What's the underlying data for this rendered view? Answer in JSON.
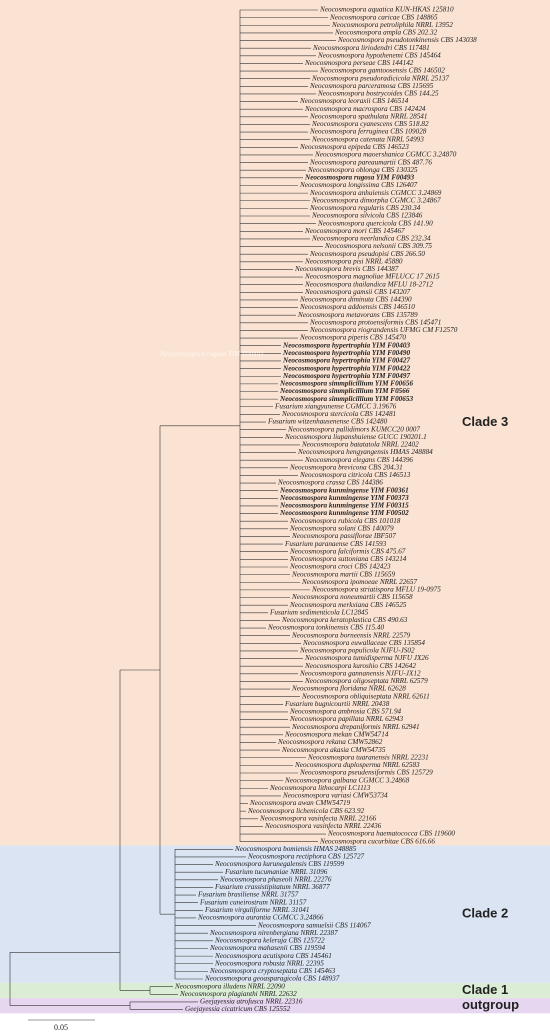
{
  "watermark": "Neocosmospora rugosa YIM F00493",
  "scale_bar": "0.05",
  "clades": [
    {
      "label": "Clade 3",
      "color": "#fbe3d3",
      "taxa": [
        {
          "name": "Neocosmospora aquatica KUN-HKAS 125810"
        },
        {
          "name": "Neocosmospora caricae CBS 148865"
        },
        {
          "name": "Neocosmospora petroliphila NRRL 13952"
        },
        {
          "name": "Neocosmospora ampla CBS 202.32"
        },
        {
          "name": "Neocosmospora pseudotonkinensis CBS 143038"
        },
        {
          "name": "Neocosmospora liriodendri CBS 117481"
        },
        {
          "name": "Neocosmospora hypothenemi CBS 145464"
        },
        {
          "name": "Neocosmospora perseae CBS 144142"
        },
        {
          "name": "Neocosmospora gamtoosensis CBS 146502"
        },
        {
          "name": "Neocosmospora pseudoradicicola NRRL 25137"
        },
        {
          "name": "Neocosmospora parceramosa CBS 115695"
        },
        {
          "name": "Neocosmospora bostrycoides CBS 144.25"
        },
        {
          "name": "Neocosmospora leoraxii CBS 146514"
        },
        {
          "name": "Neocosmospora macrospora CBS 142424"
        },
        {
          "name": "Neocosmospora spathulata NRRL 28541"
        },
        {
          "name": "Neocosmospora cyanescens CBS 518.82"
        },
        {
          "name": "Neocosmospora ferruginea CBS 109028"
        },
        {
          "name": "Neocosmospora catenata NRRL 54993"
        },
        {
          "name": "Neocosmospora epipeda CBS 146523"
        },
        {
          "name": "Neocosmospora maoershanica CGMCC 3.24870"
        },
        {
          "name": "Neocosmospora pareaumartii CBS 487.76"
        },
        {
          "name": "Neocosmospora oblonga CBS 130325"
        },
        {
          "name": "Neocosmospora rugosa YIM F00493",
          "color": "#d9262c"
        },
        {
          "name": "Neocosmospora longissima CBS 126407"
        },
        {
          "name": "Neocosmospora anhuiensis CGMCC 3.24869"
        },
        {
          "name": "Neocosmospora dimorpha CGMCC 3.24867"
        },
        {
          "name": "Neocosmospora regularis CBS 230.34"
        },
        {
          "name": "Neocosmospora silvicola CBS 123846"
        },
        {
          "name": "Neocosmospora quercicola CBS 141.90"
        },
        {
          "name": "Neocosmospora mori CBS 145467"
        },
        {
          "name": "Neocosmospora neerlandica CBS 232.34"
        },
        {
          "name": "Neocosmospora nelsonii CBS 309.75"
        },
        {
          "name": "Neocosmospora pseudopisi CBS 266.50"
        },
        {
          "name": "Neocosmospora pisi NRRL 45880"
        },
        {
          "name": "Neocosmospora brevis CBS 144387"
        },
        {
          "name": "Neocosmospora magnoliae MFLUCC 17 2615"
        },
        {
          "name": "Neocosmospora thailandica MFLU 18-2712"
        },
        {
          "name": "Neocosmospora gamsii CBS 143207"
        },
        {
          "name": "Neocosmospora diminuta CBS 144390"
        },
        {
          "name": "Neocosmospora addoensis CBS 146510"
        },
        {
          "name": "Neocosmospora metavorans CBS 135789"
        },
        {
          "name": "Neocosmospora protoensiformis CBS 145471"
        },
        {
          "name": "Neocosmospora riograndensis UFMG CM F12570"
        },
        {
          "name": "Neocosmospora piperis CBS 145470"
        },
        {
          "name": "Neocosmospora hypertrophia YIM F00403",
          "color": "#d9262c"
        },
        {
          "name": "Neocosmospora hypertrophia YIM F00490",
          "color": "#d9262c"
        },
        {
          "name": "Neocosmospora hypertrophia YIM F00427",
          "color": "#d9262c"
        },
        {
          "name": "Neocosmospora hypertrophia YIM F00422",
          "color": "#d9262c"
        },
        {
          "name": "Neocosmospora hypertrophia YIM F00497",
          "color": "#d9262c"
        },
        {
          "name": "Neocosmospora simmplicillium YIM F00656",
          "color": "#d9262c"
        },
        {
          "name": "Neocosmospora simmplicillium YIM F0566",
          "color": "#d9262c"
        },
        {
          "name": "Neocosmospora simmplicillium YIM F00653",
          "color": "#d9262c"
        },
        {
          "name": "Fusarium xiangyunense CGMCC 3.19676"
        },
        {
          "name": "Neocosmospora stercicola CBS 142481"
        },
        {
          "name": "Fusarium witzenhausenense CBS 142480"
        },
        {
          "name": "Neocosmospora pallidimors KUMCC20 0007"
        },
        {
          "name": "Neocosmospora liupanshuiense GUCC 190201.1"
        },
        {
          "name": "Neocosmospora batatatola NRRL 22402"
        },
        {
          "name": "Neocosmospora hengyangensis HMAS 248884"
        },
        {
          "name": "Neocosmospora elegans CBS 144396"
        },
        {
          "name": "Neocosmospora brevicona CBS 204.31"
        },
        {
          "name": "Neocosmospora citricola CBS 146513"
        },
        {
          "name": "Neocosmospora crassa CBS 144386"
        },
        {
          "name": "Neocosmospora kunmingense YIM F00361",
          "color": "#d9262c"
        },
        {
          "name": "Neocosmospora kunmingense YIM F00373",
          "color": "#d9262c"
        },
        {
          "name": "Neocosmospora kunmingense YIM F00315",
          "color": "#d9262c"
        },
        {
          "name": "Neocosmospora kunmingense YIM F00502",
          "color": "#d9262c"
        },
        {
          "name": "Neocosmospora rubicola CBS 101018"
        },
        {
          "name": "Neocosmospora solani CBS 140079"
        },
        {
          "name": "Neocosmospora passiflorae IBF507"
        },
        {
          "name": "Fusarium paranaense CBS 141593"
        },
        {
          "name": "Neocosmospora falciformis CBS 475.67"
        },
        {
          "name": "Neocosmospora suttoniana CBS 143214"
        },
        {
          "name": "Neocosmospora croci CBS 142423"
        },
        {
          "name": "Neocosmospora martii CBS 115659"
        },
        {
          "name": "Neocosmospora ipomoeae NRRL 22657"
        },
        {
          "name": "Neocosmospora striatispora MFLU 19-0975"
        },
        {
          "name": "Neocosmospora noneumartii CBS 115658"
        },
        {
          "name": "Neocosmospora merkxiana CBS 146525"
        },
        {
          "name": "Fusarium sedimenticola LC12845"
        },
        {
          "name": "Neocosmospora keratoplastica CBS 490.63"
        },
        {
          "name": "Neocosmospora tonkinensis CBS 115.40"
        },
        {
          "name": "Neocosmospora borneensis NRRL 22579"
        },
        {
          "name": "Neocosmospora euwallaceae CBS 135854"
        },
        {
          "name": "Neocosmospora populicola NJFU-JS02"
        },
        {
          "name": "Neocosmospora tumidisperma NJFU JX26"
        },
        {
          "name": "Neocosmospora kuroshio CBS 142642"
        },
        {
          "name": "Neocosmospora gannanensis NJFU-JX12"
        },
        {
          "name": "Neocosmospora oligoseptata NRRL 62579"
        },
        {
          "name": "Neocosmospora floridana NRRL 62628"
        },
        {
          "name": "Neocosmospora obliquiseptata NRRL 62611"
        },
        {
          "name": "Fusarium bugnicourtii NRRL 20438"
        },
        {
          "name": "Neocosmospora ambrosia CBS 571.94"
        },
        {
          "name": "Neocosmospora papillata NRRL 62943"
        },
        {
          "name": "Neocosmospora drepaniformis NRRL 62941"
        },
        {
          "name": "Neocosmospora mekan CMW54714"
        },
        {
          "name": "Neocosmospora rekana CMW52862"
        },
        {
          "name": "Neocosmospora akasia CMW54735"
        },
        {
          "name": "Neocosmospora tuaranensis NRRL 22231"
        },
        {
          "name": "Neocosmospora duplosperma NRRL 62583"
        },
        {
          "name": "Neocosmospora pseudensiformis CBS 125729"
        },
        {
          "name": "Neocosmospora galbana CGMCC 3.24868"
        },
        {
          "name": "Neocosmospora lithocarpi LC1113"
        },
        {
          "name": "Neocosmospora variasi CMW53734"
        },
        {
          "name": "Neocosmospora awan CMW54719"
        },
        {
          "name": "Neocosmospora lichenicola CBS 623.92"
        },
        {
          "name": "Neocosmospora vasinfecta NRRL 22166"
        },
        {
          "name": "Neocosmospora vasinfecta NRRL 22436"
        },
        {
          "name": "Neocosmospora haematococca CBS 119600"
        },
        {
          "name": "Neocosmospora cucurbitae CBS 616.66"
        }
      ]
    },
    {
      "label": "Clade 2",
      "color": "#dbe4f3",
      "taxa": [
        {
          "name": "Neocosmospora bomiensis HMAS 248885"
        },
        {
          "name": "Neocosmospora rectiphora CBS 125727"
        },
        {
          "name": "Neocosmospora kurunegalensis CBS 119599"
        },
        {
          "name": "Fusarium tucumaniae NRRL 31096"
        },
        {
          "name": "Neocosmospora phaseoli NRRL 22276"
        },
        {
          "name": "Fusarium crassistipitatum NRRL 36877"
        },
        {
          "name": "Fusarium brasiliense NRRL 31757"
        },
        {
          "name": "Fusarium cuneirostrum NRRL 31157"
        },
        {
          "name": "Fusarium virguliforme NRRL 31041"
        },
        {
          "name": "Neocosmospora aurantia CGMCC 3.24866"
        },
        {
          "name": "Neocosmospora samuelsii CBS 114067"
        },
        {
          "name": "Neocosmospora nirenbergiana NRRL 22387"
        },
        {
          "name": "Neocosmospora keleraja CBS 125722"
        },
        {
          "name": "Neocosmospora mahasenii CBS 119594"
        },
        {
          "name": "Neocosmospora acutispora CBS 145461"
        },
        {
          "name": "Neocosmospora robusta NRRL 22395"
        },
        {
          "name": "Neocosmospora cryptoseptata CBS 145463"
        },
        {
          "name": "Neocosmospora geoasparagicola CBS 148937"
        }
      ]
    },
    {
      "label": "Clade 1",
      "color": "#dcedd5",
      "taxa": [
        {
          "name": "Neocosmospora illudens NRRL 22090"
        },
        {
          "name": "Neocosmospora plagianthi NRRL 22632"
        }
      ]
    },
    {
      "label": "outgroup",
      "color": "#e6d6ef",
      "taxa": [
        {
          "name": "Geejayessia atrofusca NRRL 22316"
        },
        {
          "name": "Geejayessia cicatricum CBS 125552"
        }
      ]
    }
  ]
}
